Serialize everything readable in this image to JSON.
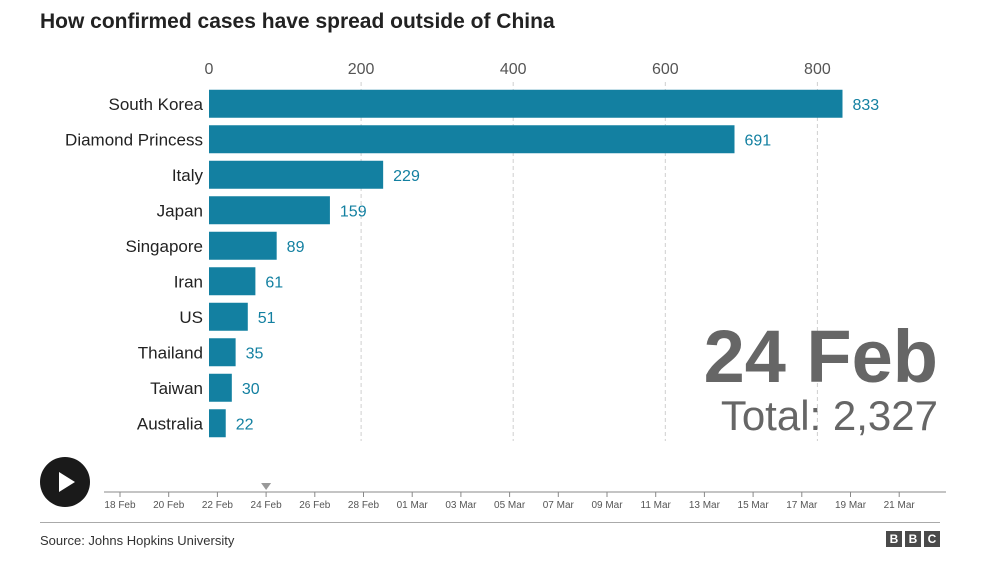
{
  "title": "How confirmed cases have spread outside of China",
  "chart_data": {
    "type": "bar",
    "orientation": "horizontal",
    "categories": [
      "South Korea",
      "Diamond Princess",
      "Italy",
      "Japan",
      "Singapore",
      "Iran",
      "US",
      "Thailand",
      "Taiwan",
      "Australia"
    ],
    "values": [
      833,
      691,
      229,
      159,
      89,
      61,
      51,
      35,
      30,
      22
    ],
    "xlim": [
      0,
      850
    ],
    "xticks": [
      0,
      200,
      400,
      600,
      800
    ],
    "xtick_labels": [
      "0",
      "200",
      "400",
      "600",
      "800"
    ],
    "grid": true,
    "date": "24 Feb",
    "total_label": "Total: 2,327",
    "bar_color": "#1380A1"
  },
  "timeline": {
    "labels": [
      "18 Feb",
      "20 Feb",
      "22 Feb",
      "24 Feb",
      "26 Feb",
      "28 Feb",
      "01 Mar",
      "03 Mar",
      "05 Mar",
      "07 Mar",
      "09 Mar",
      "11 Mar",
      "13 Mar",
      "15 Mar",
      "17 Mar",
      "19 Mar",
      "21 Mar"
    ],
    "current_index": 3
  },
  "play_icon": "play-icon",
  "source": "Source: Johns Hopkins University",
  "brand": [
    "B",
    "B",
    "C"
  ]
}
